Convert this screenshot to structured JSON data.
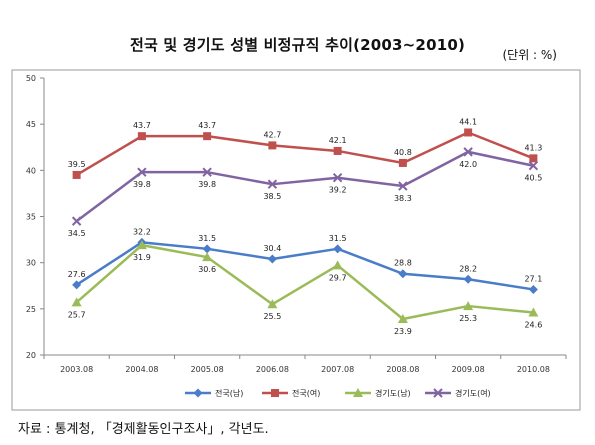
{
  "title": "전국 및 경기도 성별 비정규직 추이(2003~2010)",
  "unit": "(단위 : %)",
  "source": "자료 : 통계청, 「경제활동인구조사」, 각년도.",
  "chart_data": {
    "type": "line",
    "categories": [
      "2003.08",
      "2004.08",
      "2005.08",
      "2006.08",
      "2007.08",
      "2008.08",
      "2009.08",
      "2010.08"
    ],
    "ylim": [
      20,
      50
    ],
    "yticks": [
      20,
      25,
      30,
      35,
      40,
      45,
      50
    ],
    "grid": false,
    "legend": "bottom",
    "series": [
      {
        "name": "전국(남)",
        "color": "#4a7cc9",
        "marker": "diamond",
        "values": [
          27.6,
          32.2,
          31.5,
          30.4,
          31.5,
          28.8,
          28.2,
          27.1
        ],
        "label_pos": "above"
      },
      {
        "name": "전국(여)",
        "color": "#c0504d",
        "marker": "square",
        "values": [
          39.5,
          43.7,
          43.7,
          42.7,
          42.1,
          40.8,
          44.1,
          41.3
        ],
        "label_pos": "above"
      },
      {
        "name": "경기도(남)",
        "color": "#9bbb59",
        "marker": "triangle",
        "values": [
          25.7,
          31.9,
          30.6,
          25.5,
          29.7,
          23.9,
          25.3,
          24.6
        ],
        "label_pos": "below"
      },
      {
        "name": "경기도(여)",
        "color": "#8064a2",
        "marker": "x",
        "values": [
          34.5,
          39.8,
          39.8,
          38.5,
          39.2,
          38.3,
          42.0,
          40.5
        ],
        "label_pos": "below"
      }
    ]
  }
}
